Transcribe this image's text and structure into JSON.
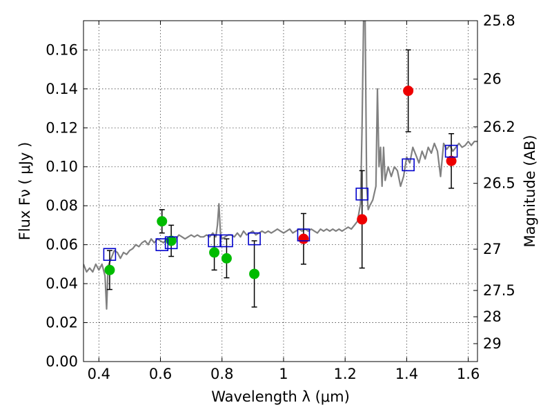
{
  "chart_data": {
    "type": "scatter",
    "xlabel": "Wavelength  λ (μm)",
    "ylabel": "Flux  Fν  ( μJy )",
    "y2label": "Magnitude (AB)",
    "xlim": [
      0.35,
      1.63
    ],
    "ylim": [
      0.0,
      0.175
    ],
    "grid": true,
    "x_ticks": [
      0.4,
      0.6,
      0.8,
      1.0,
      1.2,
      1.4,
      1.6
    ],
    "x_tick_labels": [
      "0.4",
      "0.6",
      "0.8",
      "1",
      "1.2",
      "1.4",
      "1.6"
    ],
    "y_ticks": [
      0.0,
      0.02,
      0.04,
      0.06,
      0.08,
      0.1,
      0.12,
      0.14,
      0.16
    ],
    "y_tick_labels": [
      "0.00",
      "0.02",
      "0.04",
      "0.06",
      "0.08",
      "0.10",
      "0.12",
      "0.14",
      "0.16"
    ],
    "y2_ticks": [
      {
        "label": "25.8",
        "flux": 0.175
      },
      {
        "label": "26",
        "flux": 0.145
      },
      {
        "label": "26.2",
        "flux": 0.1205
      },
      {
        "label": "26.5",
        "flux": 0.0915
      },
      {
        "label": "27",
        "flux": 0.0577
      },
      {
        "label": "27.5",
        "flux": 0.0365
      },
      {
        "label": "28",
        "flux": 0.023
      },
      {
        "label": "29",
        "flux": 0.0092
      }
    ],
    "series": [
      {
        "kind": "spectrum",
        "color": "#808080",
        "x": [
          0.35,
          0.36,
          0.37,
          0.38,
          0.39,
          0.4,
          0.41,
          0.42,
          0.425,
          0.43,
          0.44,
          0.45,
          0.46,
          0.47,
          0.48,
          0.49,
          0.5,
          0.51,
          0.52,
          0.53,
          0.54,
          0.55,
          0.56,
          0.57,
          0.58,
          0.59,
          0.6,
          0.61,
          0.62,
          0.63,
          0.64,
          0.65,
          0.66,
          0.67,
          0.68,
          0.69,
          0.7,
          0.71,
          0.72,
          0.73,
          0.74,
          0.75,
          0.76,
          0.77,
          0.78,
          0.785,
          0.79,
          0.795,
          0.8,
          0.81,
          0.82,
          0.83,
          0.84,
          0.85,
          0.86,
          0.87,
          0.88,
          0.89,
          0.9,
          0.91,
          0.92,
          0.93,
          0.94,
          0.95,
          0.96,
          0.97,
          0.98,
          0.99,
          1.0,
          1.01,
          1.02,
          1.03,
          1.04,
          1.05,
          1.06,
          1.07,
          1.08,
          1.09,
          1.1,
          1.11,
          1.12,
          1.13,
          1.14,
          1.15,
          1.16,
          1.17,
          1.18,
          1.19,
          1.2,
          1.21,
          1.22,
          1.23,
          1.24,
          1.25,
          1.255,
          1.26,
          1.262,
          1.265,
          1.27,
          1.275,
          1.28,
          1.29,
          1.3,
          1.305,
          1.31,
          1.315,
          1.32,
          1.325,
          1.33,
          1.34,
          1.35,
          1.36,
          1.37,
          1.38,
          1.39,
          1.4,
          1.41,
          1.42,
          1.43,
          1.44,
          1.45,
          1.46,
          1.47,
          1.48,
          1.49,
          1.5,
          1.51,
          1.52,
          1.53,
          1.54,
          1.55,
          1.56,
          1.57,
          1.58,
          1.59,
          1.6,
          1.61,
          1.62,
          1.63
        ],
        "y": [
          0.05,
          0.046,
          0.048,
          0.046,
          0.05,
          0.047,
          0.05,
          0.044,
          0.027,
          0.049,
          0.053,
          0.057,
          0.056,
          0.053,
          0.056,
          0.055,
          0.057,
          0.058,
          0.06,
          0.059,
          0.061,
          0.062,
          0.06,
          0.063,
          0.061,
          0.063,
          0.062,
          0.061,
          0.063,
          0.063,
          0.064,
          0.063,
          0.065,
          0.064,
          0.063,
          0.064,
          0.065,
          0.064,
          0.065,
          0.064,
          0.064,
          0.065,
          0.064,
          0.066,
          0.064,
          0.07,
          0.081,
          0.066,
          0.063,
          0.064,
          0.065,
          0.065,
          0.064,
          0.066,
          0.064,
          0.067,
          0.065,
          0.066,
          0.067,
          0.065,
          0.066,
          0.067,
          0.066,
          0.067,
          0.066,
          0.067,
          0.068,
          0.067,
          0.066,
          0.067,
          0.068,
          0.066,
          0.067,
          0.068,
          0.067,
          0.068,
          0.067,
          0.068,
          0.067,
          0.066,
          0.068,
          0.067,
          0.068,
          0.067,
          0.068,
          0.067,
          0.068,
          0.067,
          0.068,
          0.069,
          0.068,
          0.07,
          0.072,
          0.081,
          0.12,
          0.175,
          0.175,
          0.175,
          0.09,
          0.078,
          0.08,
          0.083,
          0.09,
          0.14,
          0.1,
          0.11,
          0.09,
          0.11,
          0.093,
          0.1,
          0.095,
          0.1,
          0.098,
          0.09,
          0.095,
          0.105,
          0.102,
          0.11,
          0.106,
          0.102,
          0.108,
          0.104,
          0.11,
          0.107,
          0.112,
          0.108,
          0.095,
          0.112,
          0.109,
          0.111,
          0.108,
          0.11,
          0.112,
          0.11,
          0.111,
          0.113,
          0.111,
          0.113,
          0.113
        ]
      },
      {
        "kind": "points",
        "marker": "circle",
        "color": "#00bb00",
        "points": [
          {
            "x": 0.435,
            "y": 0.047,
            "err": [
              0.037,
              0.057
            ]
          },
          {
            "x": 0.605,
            "y": 0.072,
            "err": [
              0.066,
              0.078
            ]
          },
          {
            "x": 0.635,
            "y": 0.062,
            "err": [
              0.054,
              0.07
            ]
          },
          {
            "x": 0.775,
            "y": 0.056,
            "err": [
              0.047,
              0.065
            ]
          },
          {
            "x": 0.815,
            "y": 0.053,
            "err": [
              0.043,
              0.063
            ]
          },
          {
            "x": 0.905,
            "y": 0.045,
            "err": [
              0.028,
              0.062
            ]
          }
        ]
      },
      {
        "kind": "points",
        "marker": "circle",
        "color": "#ee0000",
        "points": [
          {
            "x": 1.065,
            "y": 0.063,
            "err": [
              0.05,
              0.076
            ]
          },
          {
            "x": 1.255,
            "y": 0.073,
            "err": [
              0.048,
              0.098
            ]
          },
          {
            "x": 1.405,
            "y": 0.139,
            "err": [
              0.118,
              0.16
            ]
          },
          {
            "x": 1.545,
            "y": 0.103,
            "err": [
              0.089,
              0.117
            ]
          }
        ]
      },
      {
        "kind": "points",
        "marker": "open-square",
        "color": "#0000cc",
        "points": [
          {
            "x": 0.435,
            "y": 0.055
          },
          {
            "x": 0.605,
            "y": 0.06
          },
          {
            "x": 0.635,
            "y": 0.061
          },
          {
            "x": 0.775,
            "y": 0.062
          },
          {
            "x": 0.815,
            "y": 0.062
          },
          {
            "x": 0.905,
            "y": 0.063
          },
          {
            "x": 1.065,
            "y": 0.065
          },
          {
            "x": 1.255,
            "y": 0.086
          },
          {
            "x": 1.405,
            "y": 0.101
          },
          {
            "x": 1.545,
            "y": 0.108
          }
        ]
      }
    ]
  }
}
